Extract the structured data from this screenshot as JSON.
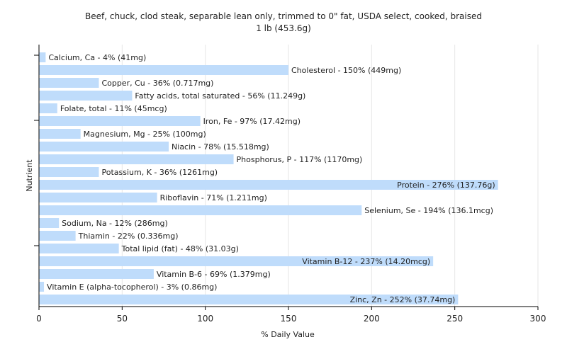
{
  "chart_data": {
    "type": "bar",
    "orientation": "horizontal",
    "title": "Beef, chuck, clod steak, separable lean only, trimmed to 0\" fat, USDA select, cooked, braised",
    "subtitle": "1 lb (453.6g)",
    "xlabel": "% Daily Value",
    "ylabel": "Nutrient",
    "xlim": [
      0,
      300
    ],
    "xticks": [
      "0",
      "50",
      "100",
      "150",
      "200",
      "250",
      "300"
    ],
    "grid": "vertical",
    "bar_color": "#bfdcfb",
    "categories": [
      "Calcium, Ca",
      "Cholesterol",
      "Copper, Cu",
      "Fatty acids, total saturated",
      "Folate, total",
      "Iron, Fe",
      "Magnesium, Mg",
      "Niacin",
      "Phosphorus, P",
      "Potassium, K",
      "Protein",
      "Riboflavin",
      "Selenium, Se",
      "Sodium, Na",
      "Thiamin",
      "Total lipid (fat)",
      "Vitamin B-12",
      "Vitamin B-6",
      "Vitamin E (alpha-tocopherol)",
      "Zinc, Zn"
    ],
    "values": [
      4,
      150,
      36,
      56,
      11,
      97,
      25,
      78,
      117,
      36,
      276,
      71,
      194,
      12,
      22,
      48,
      237,
      69,
      3,
      252
    ],
    "labels": [
      "Calcium, Ca - 4% (41mg)",
      "Cholesterol - 150% (449mg)",
      "Copper, Cu - 36% (0.717mg)",
      "Fatty acids, total saturated - 56% (11.249g)",
      "Folate, total - 11% (45mcg)",
      "Iron, Fe - 97% (17.42mg)",
      "Magnesium, Mg - 25% (100mg)",
      "Niacin - 78% (15.518mg)",
      "Phosphorus, P - 117% (1170mg)",
      "Potassium, K - 36% (1261mg)",
      "Protein - 276% (137.76g)",
      "Riboflavin - 71% (1.211mg)",
      "Selenium, Se - 194% (136.1mcg)",
      "Sodium, Na - 12% (286mg)",
      "Thiamin - 22% (0.336mg)",
      "Total lipid (fat) - 48% (31.03g)",
      "Vitamin B-12 - 237% (14.20mcg)",
      "Vitamin B-6 - 69% (1.379mg)",
      "Vitamin E (alpha-tocopherol) - 3% (0.86mg)",
      "Zinc, Zn - 252% (37.74mg)"
    ]
  }
}
